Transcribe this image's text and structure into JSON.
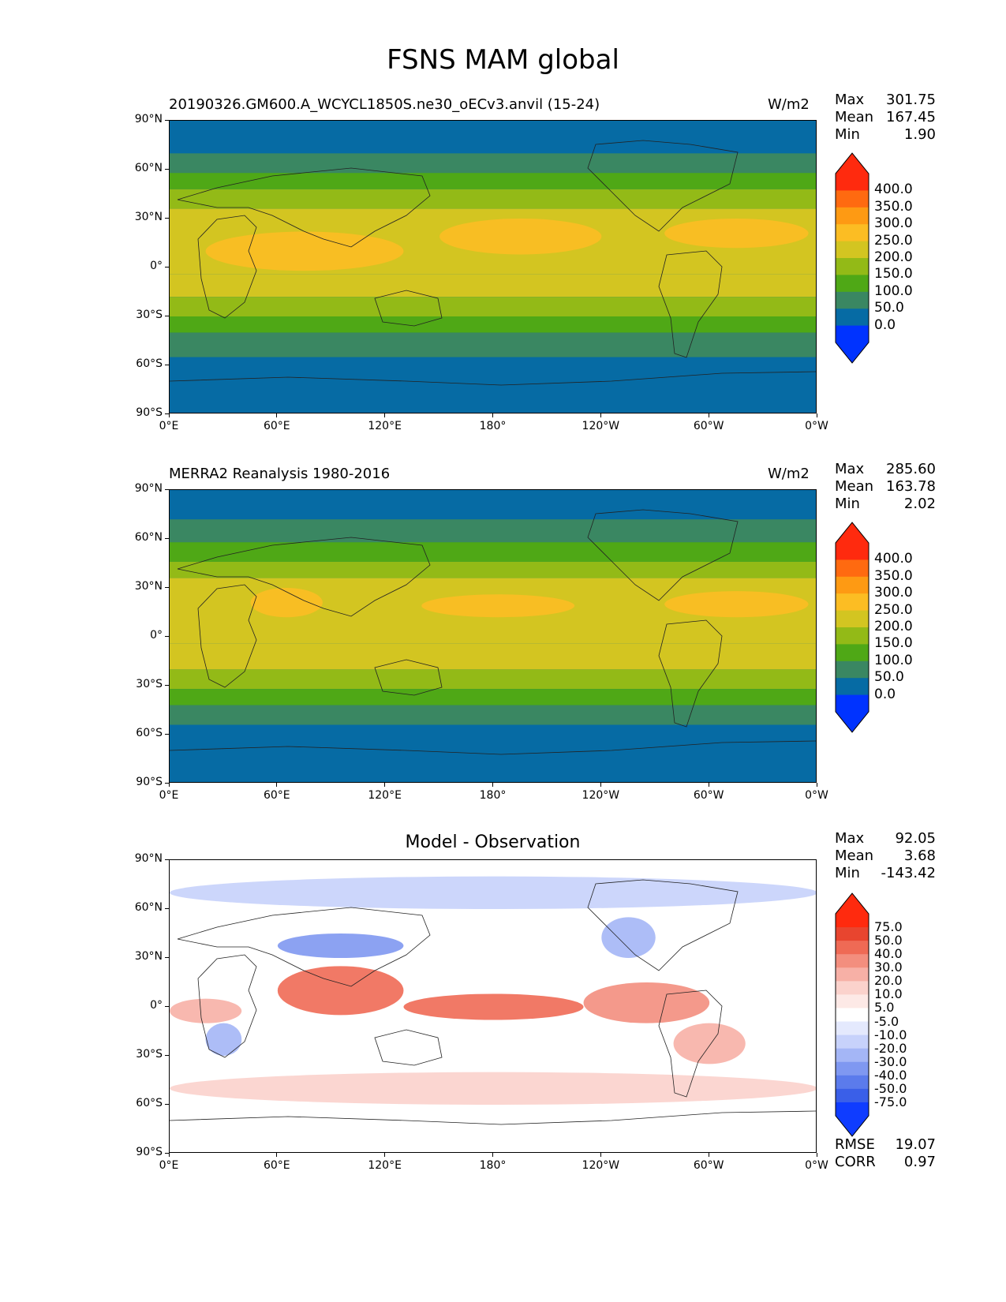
{
  "page": {
    "title": "FSNS MAM global"
  },
  "chart_data": [
    {
      "type": "heatmap",
      "panel": "test",
      "title": "20190326.GM600.A_WCYCL1850S.ne30_oECv3.anvil (15-24)",
      "units": "W/m2",
      "stats": {
        "max_label": "Max",
        "max": "301.75",
        "mean_label": "Mean",
        "mean": "167.45",
        "min_label": "Min",
        "min": "1.90"
      },
      "x_ticks": [
        "0°E",
        "60°E",
        "120°E",
        "180°",
        "120°W",
        "60°W",
        "0°W"
      ],
      "y_ticks": [
        "90°N",
        "60°N",
        "30°N",
        "0°",
        "30°S",
        "60°S",
        "90°S"
      ],
      "xlim": [
        0,
        360
      ],
      "ylim": [
        -90,
        90
      ],
      "colorbar_levels": [
        "400.0",
        "350.0",
        "300.0",
        "250.0",
        "200.0",
        "150.0",
        "100.0",
        "50.0",
        "0.0"
      ],
      "colorbar_colors": [
        "#ff2a0e",
        "#ff6a10",
        "#fe9a13",
        "#fcbd23",
        "#d3c521",
        "#93ba17",
        "#4fa816",
        "#3a8762",
        "#066ba4",
        "#0033ff"
      ],
      "zonal_bands": [
        {
          "lat": [
            70,
            90
          ],
          "value": 25
        },
        {
          "lat": [
            58,
            70
          ],
          "value": 75
        },
        {
          "lat": [
            48,
            58
          ],
          "value": 125
        },
        {
          "lat": [
            36,
            48
          ],
          "value": 175
        },
        {
          "lat": [
            -4,
            36
          ],
          "value": 225
        },
        {
          "lat": [
            -18,
            -4
          ],
          "value": 215
        },
        {
          "lat": [
            -30,
            -18
          ],
          "value": 175
        },
        {
          "lat": [
            -40,
            -30
          ],
          "value": 125
        },
        {
          "lat": [
            -55,
            -40
          ],
          "value": 75
        },
        {
          "lat": [
            -90,
            -55
          ],
          "value": 25
        }
      ],
      "features": [
        {
          "lon": [
            150,
            240
          ],
          "lat": [
            8,
            30
          ],
          "value": 260
        },
        {
          "lon": [
            275,
            355
          ],
          "lat": [
            12,
            30
          ],
          "value": 260
        },
        {
          "lon": [
            20,
            130
          ],
          "lat": [
            -2,
            22
          ],
          "value": 255
        }
      ]
    },
    {
      "type": "heatmap",
      "panel": "reference",
      "title": "MERRA2 Reanalysis 1980-2016",
      "units": "W/m2",
      "stats": {
        "max_label": "Max",
        "max": "285.60",
        "mean_label": "Mean",
        "mean": "163.78",
        "min_label": "Min",
        "min": "2.02"
      },
      "x_ticks": [
        "0°E",
        "60°E",
        "120°E",
        "180°",
        "120°W",
        "60°W",
        "0°W"
      ],
      "y_ticks": [
        "90°N",
        "60°N",
        "30°N",
        "0°",
        "30°S",
        "60°S",
        "90°S"
      ],
      "xlim": [
        0,
        360
      ],
      "ylim": [
        -90,
        90
      ],
      "colorbar_levels": [
        "400.0",
        "350.0",
        "300.0",
        "250.0",
        "200.0",
        "150.0",
        "100.0",
        "50.0",
        "0.0"
      ],
      "colorbar_colors": [
        "#ff2a0e",
        "#ff6a10",
        "#fe9a13",
        "#fcbd23",
        "#d3c521",
        "#93ba17",
        "#4fa816",
        "#3a8762",
        "#066ba4",
        "#0033ff"
      ],
      "zonal_bands": [
        {
          "lat": [
            72,
            90
          ],
          "value": 25
        },
        {
          "lat": [
            58,
            72
          ],
          "value": 75
        },
        {
          "lat": [
            46,
            58
          ],
          "value": 125
        },
        {
          "lat": [
            36,
            46
          ],
          "value": 175
        },
        {
          "lat": [
            -4,
            36
          ],
          "value": 215
        },
        {
          "lat": [
            -20,
            -4
          ],
          "value": 210
        },
        {
          "lat": [
            -32,
            -20
          ],
          "value": 175
        },
        {
          "lat": [
            -42,
            -32
          ],
          "value": 125
        },
        {
          "lat": [
            -54,
            -42
          ],
          "value": 75
        },
        {
          "lat": [
            -90,
            -54
          ],
          "value": 25
        }
      ],
      "features": [
        {
          "lon": [
            140,
            225
          ],
          "lat": [
            12,
            26
          ],
          "value": 260
        },
        {
          "lon": [
            275,
            355
          ],
          "lat": [
            12,
            28
          ],
          "value": 260
        },
        {
          "lon": [
            45,
            85
          ],
          "lat": [
            12,
            30
          ],
          "value": 255
        }
      ]
    },
    {
      "type": "heatmap",
      "panel": "difference",
      "title": "Model - Observation",
      "stats": {
        "max_label": "Max",
        "max": "92.05",
        "mean_label": "Mean",
        "mean": "3.68",
        "min_label": "Min",
        "min": "-143.42"
      },
      "metrics": {
        "rmse_label": "RMSE",
        "rmse": "19.07",
        "corr_label": "CORR",
        "corr": "0.97"
      },
      "x_ticks": [
        "0°E",
        "60°E",
        "120°E",
        "180°",
        "120°W",
        "60°W",
        "0°W"
      ],
      "y_ticks": [
        "90°N",
        "60°N",
        "30°N",
        "0°",
        "30°S",
        "60°S",
        "90°S"
      ],
      "xlim": [
        0,
        360
      ],
      "ylim": [
        -90,
        90
      ],
      "colorbar_levels": [
        "75.0",
        "50.0",
        "40.0",
        "30.0",
        "20.0",
        "10.0",
        "5.0",
        "-5.0",
        "-10.0",
        "-20.0",
        "-30.0",
        "-40.0",
        "-50.0",
        "-75.0"
      ],
      "colorbar_colors": [
        "#ff2a0e",
        "#e8452f",
        "#ef6a55",
        "#f38e7e",
        "#f7b0a6",
        "#fbd2cc",
        "#fde9e6",
        "#ffffff",
        "#e4e9fd",
        "#c7d2fb",
        "#a4b6f6",
        "#7f98f1",
        "#5b7bec",
        "#3a5fe8",
        "#0f3cff"
      ],
      "features": [
        {
          "lon": [
            130,
            230
          ],
          "lat": [
            -8,
            8
          ],
          "value": 45
        },
        {
          "lon": [
            60,
            130
          ],
          "lat": [
            -5,
            25
          ],
          "value": 45
        },
        {
          "lon": [
            230,
            300
          ],
          "lat": [
            -10,
            15
          ],
          "value": 35
        },
        {
          "lon": [
            0,
            40
          ],
          "lat": [
            -10,
            5
          ],
          "value": 25
        },
        {
          "lon": [
            60,
            130
          ],
          "lat": [
            30,
            45
          ],
          "value": -35
        },
        {
          "lon": [
            240,
            270
          ],
          "lat": [
            30,
            55
          ],
          "value": -25
        },
        {
          "lon": [
            0,
            360
          ],
          "lat": [
            60,
            80
          ],
          "value": -15
        },
        {
          "lon": [
            20,
            40
          ],
          "lat": [
            -30,
            -10
          ],
          "value": -25
        },
        {
          "lon": [
            280,
            320
          ],
          "lat": [
            -35,
            -10
          ],
          "value": 20
        },
        {
          "lon": [
            0,
            360
          ],
          "lat": [
            -60,
            -40
          ],
          "value": 12
        }
      ]
    }
  ]
}
